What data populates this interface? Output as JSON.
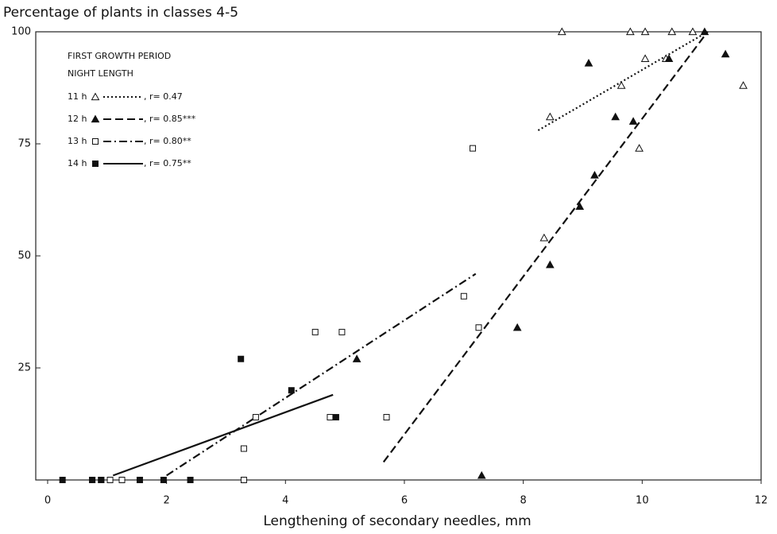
{
  "chart_data": {
    "type": "scatter",
    "title": "Percentage of plants in classes 4-5",
    "x_label": "Lengthening of secondary needles, mm",
    "legend_title": [
      "FIRST GROWTH PERIOD",
      "NIGHT LENGTH"
    ],
    "legend_position": "upper left",
    "xlim": [
      -0.2,
      12
    ],
    "ylim": [
      0,
      100
    ],
    "xticks": [
      0,
      2,
      4,
      6,
      8,
      10,
      12
    ],
    "yticks": [
      25,
      50,
      75,
      100
    ],
    "grid": false,
    "series": [
      {
        "name": "11 h",
        "r_label": ", r= 0.47",
        "marker": "triangle-open",
        "dash": "dotted",
        "color": "#111",
        "x": [
          8.65,
          9.8,
          10.05,
          10.5,
          10.85,
          8.35,
          8.45,
          9.65,
          10.05,
          10.4,
          9.95,
          11.7
        ],
        "values": [
          100,
          100,
          100,
          100,
          100,
          54,
          81,
          88,
          94,
          94,
          74,
          88
        ],
        "fit_x": [
          8.25,
          11.1
        ],
        "fit_y": [
          78,
          100
        ]
      },
      {
        "name": "12 h",
        "r_label": ", r= 0.85***",
        "marker": "triangle-filled",
        "dash": "dashed",
        "color": "#111",
        "x": [
          5.2,
          7.3,
          7.9,
          8.45,
          8.95,
          9.2,
          9.55,
          9.85,
          9.1,
          10.45,
          11.05,
          11.4
        ],
        "values": [
          27,
          1,
          34,
          48,
          61,
          68,
          81,
          80,
          93,
          94,
          100,
          95
        ],
        "fit_x": [
          5.65,
          11.1
        ],
        "fit_y": [
          4,
          100
        ]
      },
      {
        "name": "13 h",
        "r_label": ", r= 0.80**",
        "marker": "square-open",
        "dash": "dashdot",
        "color": "#111",
        "x": [
          7.15,
          7.0,
          7.25,
          4.95,
          4.5,
          3.5,
          4.75,
          5.7,
          3.3,
          3.3,
          1.05,
          1.25,
          0.9,
          0.75
        ],
        "values": [
          74,
          41,
          34,
          33,
          33,
          14,
          14,
          14,
          7,
          0,
          0,
          0,
          0,
          0
        ],
        "fit_x": [
          2.0,
          7.2
        ],
        "fit_y": [
          1,
          46
        ]
      },
      {
        "name": "14 h",
        "r_label": ", r= 0.75**",
        "marker": "square-filled",
        "dash": "solid",
        "color": "#111",
        "x": [
          0.25,
          0.75,
          0.9,
          1.55,
          1.95,
          2.4,
          3.25,
          4.1,
          4.85
        ],
        "values": [
          0,
          0,
          0,
          0,
          0,
          0,
          27,
          20,
          14
        ],
        "fit_x": [
          1.1,
          4.8
        ],
        "fit_y": [
          1,
          19
        ]
      }
    ]
  }
}
